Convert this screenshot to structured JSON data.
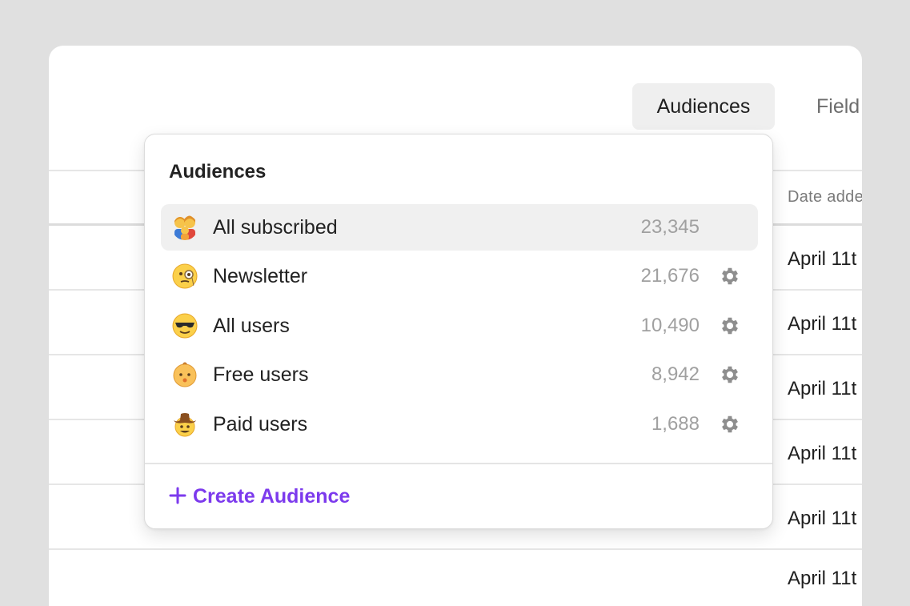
{
  "tabs": {
    "audiences": "Audiences",
    "fields": "Field"
  },
  "table": {
    "column_header": "Date adde",
    "rows": [
      "April 11t",
      "April 11t",
      "April 11t",
      "April 11t",
      "April 11t",
      "April 11t"
    ]
  },
  "dropdown": {
    "title": "Audiences",
    "items": [
      {
        "label": "All subscribed",
        "count": "23,345",
        "emoji": "family-emoji"
      },
      {
        "label": "Newsletter",
        "count": "21,676",
        "emoji": "monocle-face-emoji"
      },
      {
        "label": "All users",
        "count": "10,490",
        "emoji": "sunglasses-face-emoji"
      },
      {
        "label": "Free users",
        "count": "8,942",
        "emoji": "baby-emoji"
      },
      {
        "label": "Paid users",
        "count": "1,688",
        "emoji": "cowboy-face-emoji"
      }
    ],
    "create_label": "Create Audience"
  },
  "colors": {
    "accent": "#7c3aed",
    "background": "#e0e0e0",
    "selected_row": "#f0f0f0"
  }
}
